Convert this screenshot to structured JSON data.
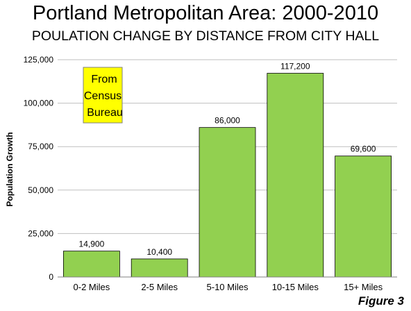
{
  "chart_data": {
    "type": "bar",
    "title": "Portland Metropolitan Area: 2000-2010",
    "subtitle": "POULATION CHANGE BY DISTANCE FROM CITY HALL",
    "xlabel": "",
    "ylabel": "Population Growth",
    "ylim": [
      0,
      125000
    ],
    "yticks": [
      0,
      25000,
      50000,
      75000,
      100000,
      125000
    ],
    "ytick_labels": [
      "0",
      "25,000",
      "50,000",
      "75,000",
      "100,000",
      "125,000"
    ],
    "categories": [
      "0-2 Miles",
      "2-5 Miles",
      "5-10 Miles",
      "10-15 Miles",
      "15+ Miles"
    ],
    "values": [
      14900,
      10400,
      86000,
      117200,
      69600
    ],
    "data_labels": [
      "14,900",
      "10,400",
      "86,000",
      "117,200",
      "69,600"
    ],
    "grid": true,
    "bar_color": "#92d050",
    "annotation": {
      "lines": [
        "From",
        "Census",
        "Bureau"
      ],
      "background": "#ffff00"
    },
    "figure_label": "Figure 3"
  }
}
